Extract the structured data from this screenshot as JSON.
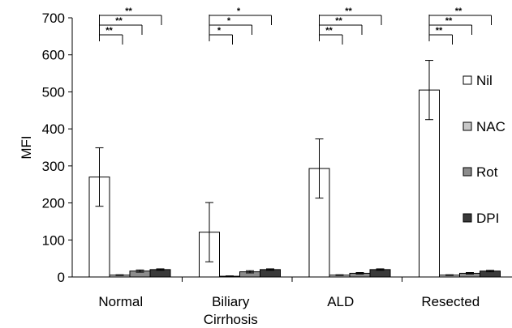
{
  "chart_data": {
    "type": "bar",
    "ylabel": "MFI",
    "ylim": [
      0,
      700
    ],
    "yticks": [
      0,
      100,
      200,
      300,
      400,
      500,
      600,
      700
    ],
    "categories": [
      [
        "Normal"
      ],
      [
        "Biliary",
        "Cirrhosis"
      ],
      [
        "ALD"
      ],
      [
        "Resected"
      ]
    ],
    "legend_position": "right",
    "series": [
      {
        "name": "Nil",
        "color": "#ffffff",
        "values": [
          270,
          121,
          293,
          505
        ],
        "errors": [
          79,
          80,
          80,
          80
        ]
      },
      {
        "name": "NAC",
        "color": "#c8c8c8",
        "values": [
          5,
          2,
          5,
          5
        ],
        "errors": [
          1,
          1,
          1,
          1
        ]
      },
      {
        "name": "Rot",
        "color": "#8c8c8c",
        "values": [
          16,
          14,
          10,
          10
        ],
        "errors": [
          3,
          3,
          2,
          2
        ]
      },
      {
        "name": "DPI",
        "color": "#3a3a3a",
        "values": [
          20,
          20,
          20,
          16
        ],
        "errors": [
          2,
          2,
          2,
          2
        ]
      }
    ],
    "significance": [
      {
        "category": "Normal",
        "labels": [
          "**",
          "**",
          "**"
        ]
      },
      {
        "category": "Biliary Cirrhosis",
        "labels": [
          "*",
          "*",
          "*"
        ]
      },
      {
        "category": "ALD",
        "labels": [
          "**",
          "**",
          "**"
        ]
      },
      {
        "category": "Resected",
        "labels": [
          "**",
          "**",
          "**"
        ]
      }
    ]
  }
}
